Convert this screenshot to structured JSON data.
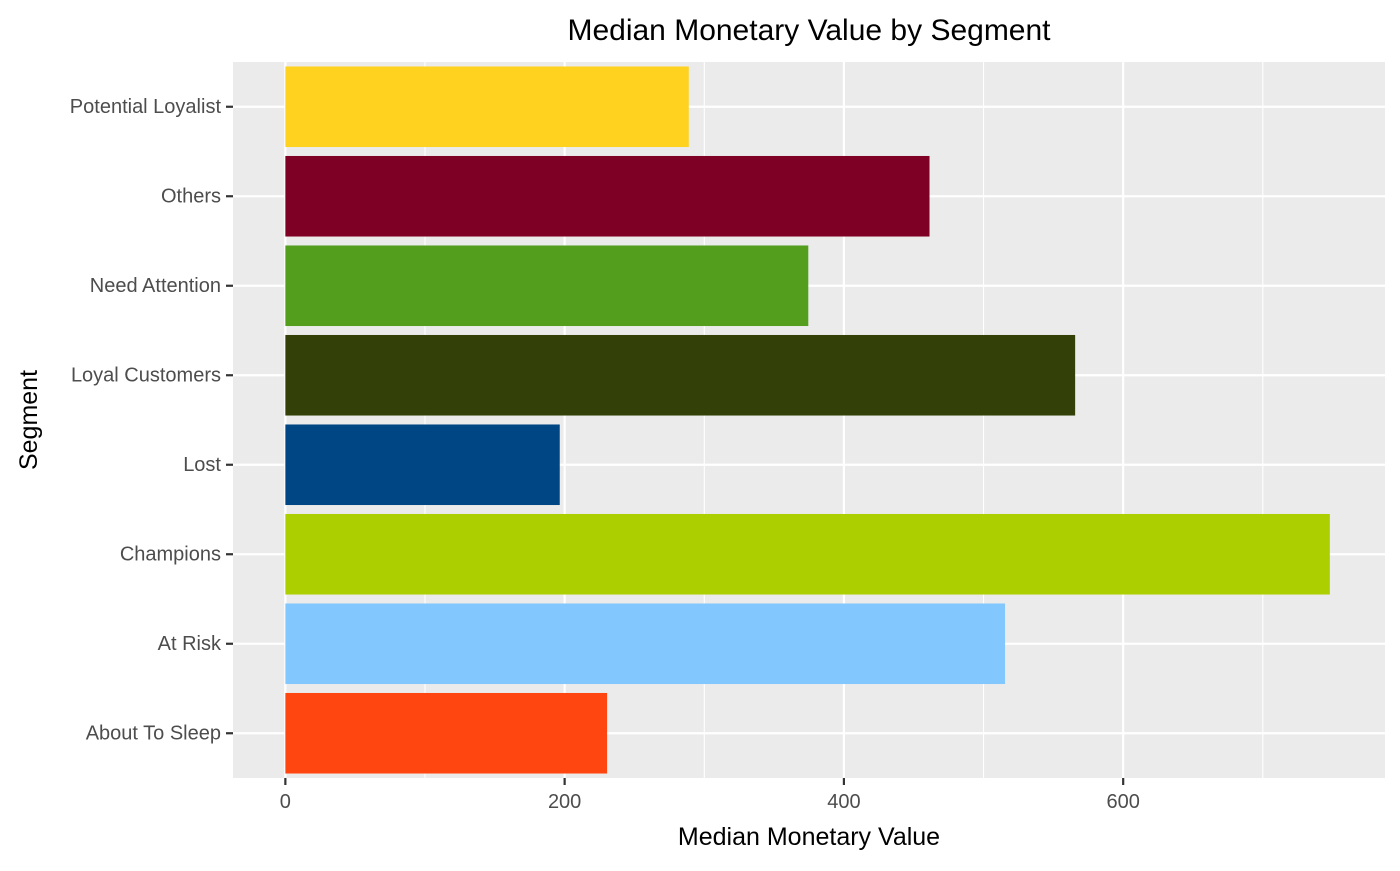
{
  "chart_data": {
    "type": "bar",
    "orientation": "horizontal",
    "title": "Median Monetary Value by Segment",
    "xlabel": "Median Monetary Value",
    "ylabel": "Segment",
    "xlim": [
      -37.5,
      787.5
    ],
    "xticks": [
      0,
      200,
      400,
      600
    ],
    "xtick_labels": [
      "0",
      "200",
      "400",
      "600"
    ],
    "grid": true,
    "legend": "none",
    "categories": [
      "About To Sleep",
      "At Risk",
      "Champions",
      "Lost",
      "Loyal Customers",
      "Need Attention",
      "Others",
      "Potential Loyalist"
    ],
    "values": [
      230.4,
      515.4,
      748.0,
      196.5,
      565.6,
      374.5,
      461.3,
      288.9
    ],
    "colors": [
      "#FF4510",
      "#82C8FF",
      "#ACCF00",
      "#004685",
      "#334007",
      "#549E1E",
      "#7E0024",
      "#FFD21F"
    ]
  }
}
